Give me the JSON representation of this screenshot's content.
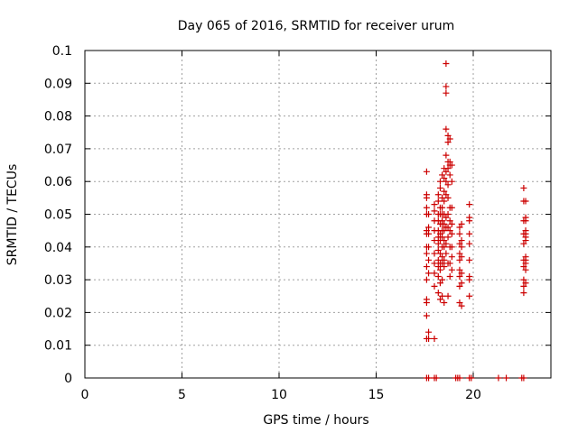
{
  "chart_data": {
    "type": "scatter",
    "title": "Day 065 of 2016, SRMTID for receiver urum",
    "xlabel": "GPS time / hours",
    "ylabel": "SRMTID / TECUs",
    "xlim": [
      0,
      24
    ],
    "ylim": [
      0,
      0.1
    ],
    "xticks": [
      "0",
      "5",
      "10",
      "15",
      "20"
    ],
    "xtick_values": [
      0,
      5,
      10,
      15,
      20
    ],
    "yticks": [
      "0",
      "0.01",
      "0.02",
      "0.03",
      "0.04",
      "0.05",
      "0.06",
      "0.07",
      "0.08",
      "0.09",
      "0.1"
    ],
    "ytick_values": [
      0,
      0.01,
      0.02,
      0.03,
      0.04,
      0.05,
      0.06,
      0.07,
      0.08,
      0.09,
      0.1
    ],
    "grid": true,
    "legend": "none",
    "marker": "plus",
    "color": "#cc0000",
    "series": [
      {
        "x": [
          17.6,
          17.6,
          17.6,
          17.6,
          17.6,
          17.6,
          17.6,
          17.6,
          17.6,
          17.6,
          17.6,
          17.6,
          17.6,
          17.6,
          17.6,
          17.7,
          17.7,
          17.7,
          17.7,
          17.7,
          17.7,
          17.7,
          17.7,
          18.0,
          18.0,
          18.0,
          18.0,
          18.0,
          18.0,
          18.0,
          18.0,
          18.0,
          18.0,
          18.2,
          18.2,
          18.2,
          18.2,
          18.2,
          18.2,
          18.2,
          18.2,
          18.2,
          18.2,
          18.2,
          18.2,
          18.3,
          18.3,
          18.3,
          18.3,
          18.3,
          18.3,
          18.3,
          18.3,
          18.3,
          18.3,
          18.3,
          18.3,
          18.4,
          18.4,
          18.4,
          18.4,
          18.4,
          18.4,
          18.4,
          18.4,
          18.4,
          18.4,
          18.4,
          18.4,
          18.4,
          18.5,
          18.5,
          18.5,
          18.5,
          18.5,
          18.5,
          18.5,
          18.5,
          18.5,
          18.5,
          18.5,
          18.5,
          18.6,
          18.6,
          18.6,
          18.6,
          18.6,
          18.6,
          18.6,
          18.6,
          18.6,
          18.6,
          18.6,
          18.6,
          18.7,
          18.7,
          18.7,
          18.7,
          18.7,
          18.7,
          18.7,
          18.7,
          18.7,
          18.7,
          18.7,
          18.8,
          18.8,
          18.8,
          18.8,
          18.8,
          18.8,
          18.8,
          18.8,
          18.8,
          18.8,
          18.9,
          18.9,
          18.9,
          18.9,
          18.9,
          18.9,
          18.9,
          18.9,
          19.3,
          19.3,
          19.3,
          19.3,
          19.3,
          19.3,
          19.3,
          19.3,
          19.3,
          19.4,
          19.4,
          19.4,
          19.4,
          19.4,
          19.4,
          19.4,
          19.8,
          19.8,
          19.8,
          19.8,
          19.8,
          19.8,
          19.8,
          19.8,
          19.8,
          22.6,
          22.6,
          22.6,
          22.6,
          22.6,
          22.6,
          22.6,
          22.6,
          22.6,
          22.6,
          22.7,
          22.7,
          22.7,
          22.7,
          22.7,
          22.7,
          22.7,
          22.7,
          22.7,
          22.7,
          22.7,
          22.7,
          17.6,
          17.7,
          18.0,
          18.1,
          19.1,
          19.2,
          19.3,
          19.8,
          19.9,
          21.3,
          21.7,
          22.5,
          22.6
        ],
        "y": [
          0.063,
          0.056,
          0.055,
          0.052,
          0.05,
          0.045,
          0.044,
          0.04,
          0.038,
          0.034,
          0.03,
          0.024,
          0.023,
          0.019,
          0.012,
          0.05,
          0.046,
          0.044,
          0.04,
          0.036,
          0.032,
          0.014,
          0.012,
          0.053,
          0.051,
          0.048,
          0.045,
          0.042,
          0.038,
          0.035,
          0.032,
          0.028,
          0.012,
          0.056,
          0.054,
          0.05,
          0.048,
          0.045,
          0.043,
          0.041,
          0.039,
          0.036,
          0.034,
          0.031,
          0.026,
          0.06,
          0.058,
          0.052,
          0.05,
          0.047,
          0.044,
          0.042,
          0.038,
          0.035,
          0.033,
          0.029,
          0.024,
          0.062,
          0.055,
          0.052,
          0.05,
          0.048,
          0.047,
          0.045,
          0.043,
          0.04,
          0.037,
          0.035,
          0.03,
          0.025,
          0.064,
          0.061,
          0.057,
          0.054,
          0.05,
          0.047,
          0.045,
          0.042,
          0.04,
          0.036,
          0.034,
          0.023,
          0.096,
          0.089,
          0.087,
          0.076,
          0.068,
          0.063,
          0.06,
          0.056,
          0.049,
          0.046,
          0.041,
          0.038,
          0.074,
          0.072,
          0.066,
          0.064,
          0.059,
          0.055,
          0.05,
          0.046,
          0.043,
          0.035,
          0.025,
          0.073,
          0.066,
          0.065,
          0.062,
          0.052,
          0.048,
          0.045,
          0.04,
          0.035,
          0.031,
          0.065,
          0.06,
          0.052,
          0.047,
          0.044,
          0.04,
          0.037,
          0.033,
          0.046,
          0.044,
          0.041,
          0.038,
          0.036,
          0.033,
          0.031,
          0.028,
          0.023,
          0.047,
          0.042,
          0.04,
          0.037,
          0.032,
          0.029,
          0.022,
          0.053,
          0.049,
          0.048,
          0.044,
          0.041,
          0.036,
          0.031,
          0.03,
          0.025,
          0.058,
          0.054,
          0.048,
          0.044,
          0.041,
          0.036,
          0.034,
          0.03,
          0.028,
          0.026,
          0.054,
          0.049,
          0.048,
          0.045,
          0.044,
          0.043,
          0.042,
          0.037,
          0.036,
          0.035,
          0.033,
          0.029,
          0,
          0,
          0,
          0,
          0,
          0,
          0,
          0,
          0,
          0,
          0,
          0,
          0
        ]
      }
    ]
  }
}
